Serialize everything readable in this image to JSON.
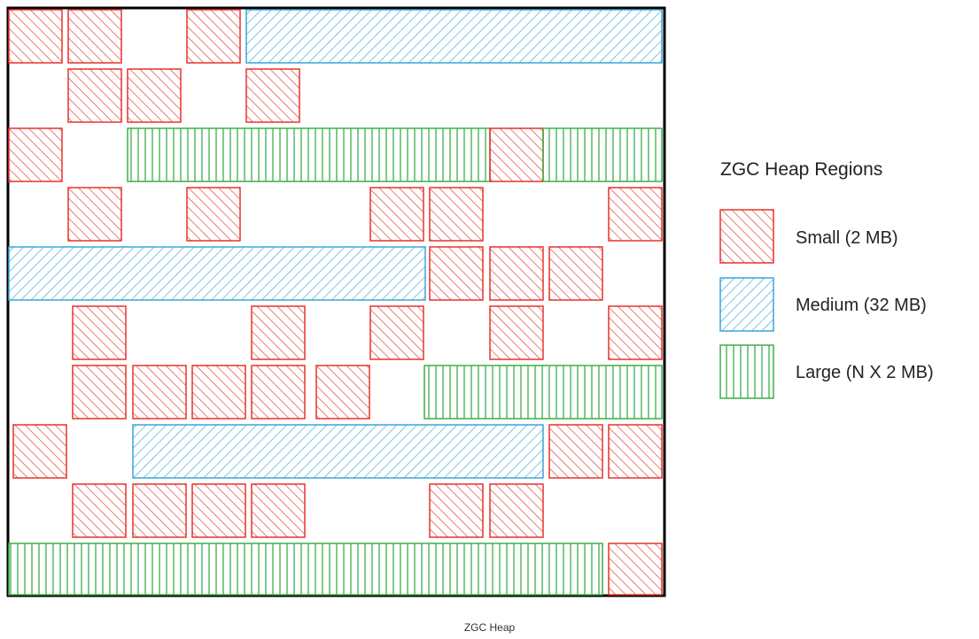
{
  "diagram": {
    "legend_title": "ZGC Heap Regions",
    "caption": "ZGC Heap",
    "region_types": {
      "small": {
        "label": "Small (2 MB)",
        "color": "#e8322c",
        "pattern": "diagonal-forward"
      },
      "medium": {
        "label": "Medium (32 MB)",
        "color": "#3aa6d8",
        "pattern": "diagonal-backward"
      },
      "large": {
        "label": "Large (N X 2 MB)",
        "color": "#3fae49",
        "pattern": "vertical"
      }
    },
    "border_color": "#000000"
  }
}
